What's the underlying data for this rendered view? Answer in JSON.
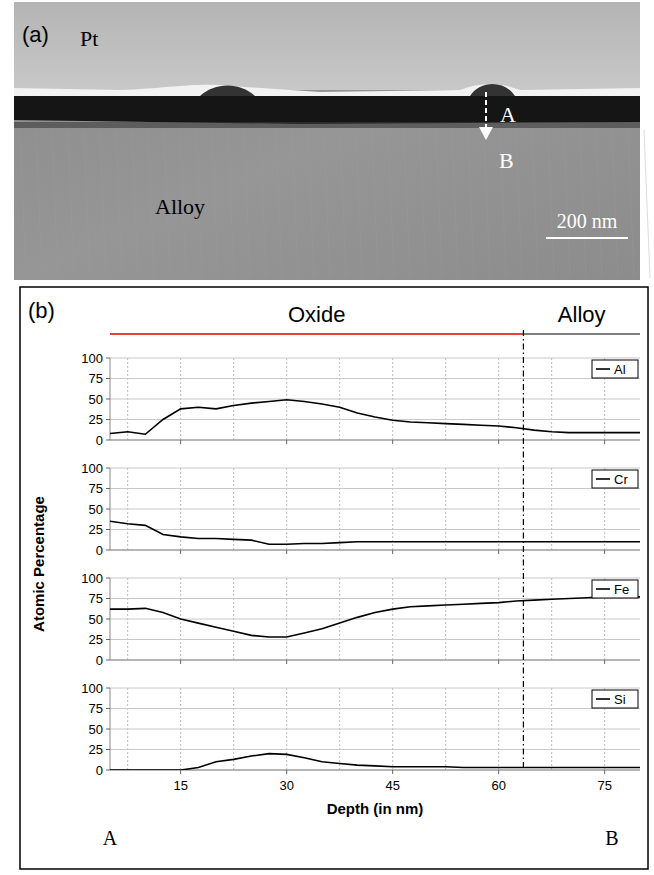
{
  "panel_a": {
    "label": "(a)",
    "layer_top": "Pt",
    "layer_bottom": "Alloy",
    "point_a": "A",
    "point_b": "B",
    "scale_bar": "200 nm"
  },
  "panel_b": {
    "label": "(b)",
    "regions": [
      "Oxide",
      "Alloy"
    ],
    "boundary": 63.5,
    "x_label": "Depth (in nm)",
    "y_label": "Atomic Percentage",
    "start_label": "A",
    "end_label": "B"
  },
  "chart_data": [
    {
      "type": "line",
      "x": [
        5,
        7.5,
        10,
        12.5,
        15,
        17.5,
        20,
        22.5,
        25,
        27.5,
        30,
        32.5,
        35,
        37.5,
        40,
        42.5,
        45,
        47.5,
        50,
        52.5,
        55,
        57.5,
        60,
        62.5,
        65,
        67.5,
        70,
        72.5,
        75,
        77.5,
        80
      ],
      "series": [
        {
          "name": "Al",
          "color": "#000000",
          "values": [
            8,
            10,
            7,
            25,
            38,
            40,
            38,
            42,
            45,
            47,
            49,
            47,
            44,
            40,
            33,
            28,
            24,
            22,
            21,
            20,
            19,
            18,
            17,
            15,
            12,
            10,
            9,
            9,
            9,
            9,
            9
          ]
        }
      ],
      "xlim": [
        5,
        80
      ],
      "xticks": [
        15,
        30,
        45,
        60,
        75
      ],
      "xgrid": [
        7.5,
        15,
        22.5,
        30,
        37.5,
        45,
        52.5,
        60,
        67.5,
        75
      ],
      "ylim": [
        0,
        100
      ],
      "yticks": [
        0,
        25,
        50,
        75,
        100
      ],
      "grid": true,
      "legend": "upper right",
      "tick_labels": "y"
    },
    {
      "type": "line",
      "x": [
        5,
        7.5,
        10,
        12.5,
        15,
        17.5,
        20,
        22.5,
        25,
        27.5,
        30,
        32.5,
        35,
        37.5,
        40,
        42.5,
        45,
        47.5,
        50,
        52.5,
        55,
        57.5,
        60,
        62.5,
        65,
        67.5,
        70,
        72.5,
        75,
        77.5,
        80
      ],
      "series": [
        {
          "name": "Cr",
          "color": "#000000",
          "values": [
            35,
            32,
            30,
            19,
            16,
            14,
            14,
            13,
            12,
            7,
            7,
            8,
            8,
            9,
            10,
            10,
            10,
            10,
            10,
            10,
            10,
            10,
            10,
            10,
            10,
            10,
            10,
            10,
            10,
            10,
            10
          ]
        }
      ],
      "xlim": [
        5,
        80
      ],
      "xticks": [
        15,
        30,
        45,
        60,
        75
      ],
      "xgrid": [
        7.5,
        15,
        22.5,
        30,
        37.5,
        45,
        52.5,
        60,
        67.5,
        75
      ],
      "ylim": [
        0,
        100
      ],
      "yticks": [
        0,
        25,
        50,
        75,
        100
      ],
      "grid": true,
      "legend": "upper right",
      "tick_labels": "y"
    },
    {
      "type": "line",
      "x": [
        5,
        7.5,
        10,
        12.5,
        15,
        17.5,
        20,
        22.5,
        25,
        27.5,
        30,
        32.5,
        35,
        37.5,
        40,
        42.5,
        45,
        47.5,
        50,
        52.5,
        55,
        57.5,
        60,
        62.5,
        65,
        67.5,
        70,
        72.5,
        75,
        77.5,
        80
      ],
      "series": [
        {
          "name": "Fe",
          "color": "#000000",
          "values": [
            62,
            62,
            63,
            58,
            50,
            45,
            40,
            35,
            30,
            28,
            28,
            33,
            38,
            45,
            52,
            58,
            62,
            65,
            66,
            67,
            68,
            69,
            70,
            72,
            73,
            74,
            75,
            76,
            77,
            77,
            77
          ]
        }
      ],
      "xlim": [
        5,
        80
      ],
      "xticks": [
        15,
        30,
        45,
        60,
        75
      ],
      "xgrid": [
        7.5,
        15,
        22.5,
        30,
        37.5,
        45,
        52.5,
        60,
        67.5,
        75
      ],
      "ylim": [
        0,
        100
      ],
      "yticks": [
        0,
        25,
        50,
        75,
        100
      ],
      "grid": true,
      "legend": "upper right",
      "tick_labels": "y"
    },
    {
      "type": "line",
      "x": [
        5,
        7.5,
        10,
        12.5,
        15,
        17.5,
        20,
        22.5,
        25,
        27.5,
        30,
        32.5,
        35,
        37.5,
        40,
        42.5,
        45,
        47.5,
        50,
        52.5,
        55,
        57.5,
        60,
        62.5,
        65,
        67.5,
        70,
        72.5,
        75,
        77.5,
        80
      ],
      "series": [
        {
          "name": "Si",
          "color": "#000000",
          "values": [
            0,
            0,
            0,
            0,
            0,
            3,
            10,
            13,
            17,
            20,
            19,
            15,
            10,
            8,
            6,
            5,
            4,
            4,
            4,
            4,
            3,
            3,
            3,
            3,
            3,
            3,
            3,
            3,
            3,
            3,
            3
          ]
        }
      ],
      "xlim": [
        5,
        80
      ],
      "xticks": [
        15,
        30,
        45,
        60,
        75
      ],
      "xgrid": [
        7.5,
        15,
        22.5,
        30,
        37.5,
        45,
        52.5,
        60,
        67.5,
        75
      ],
      "ylim": [
        0,
        100
      ],
      "yticks": [
        0,
        25,
        50,
        75,
        100
      ],
      "grid": true,
      "legend": "upper right"
    }
  ]
}
